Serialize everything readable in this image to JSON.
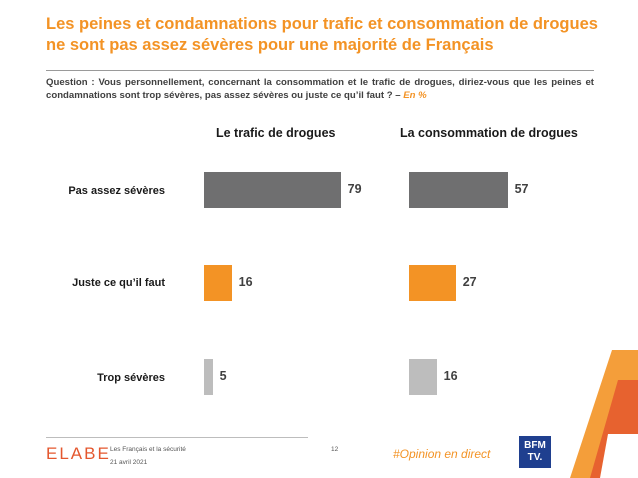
{
  "title": "Les peines et condamnations pour trafic et consommation de drogues ne sont pas assez sévères pour une majorité de Français",
  "question": {
    "text": "Question : Vous personnellement, concernant la consommation et le trafic de drogues, diriez-vous que les peines et condamnations sont trop sévères, pas assez sévères ou juste ce qu’il faut ? –",
    "unit": "En %"
  },
  "chart_data": {
    "type": "bar",
    "orientation": "horizontal",
    "categories": [
      "Pas assez sévères",
      "Juste ce qu’il faut",
      "Trop sévères"
    ],
    "panels": [
      {
        "title": "Le trafic de drogues",
        "values": [
          79,
          16,
          5
        ]
      },
      {
        "title": "La consommation de drogues",
        "values": [
          57,
          27,
          16
        ]
      }
    ],
    "colors": [
      "#6f6f70",
      "#f39325",
      "#bdbdbd"
    ]
  },
  "footer": {
    "logo": "ELABE",
    "study": "Les Français et la sécurité",
    "date": "21 avril 2021",
    "page": "12",
    "hashtag": "#Opinion en direct",
    "partner_logo": "BFM TV."
  }
}
